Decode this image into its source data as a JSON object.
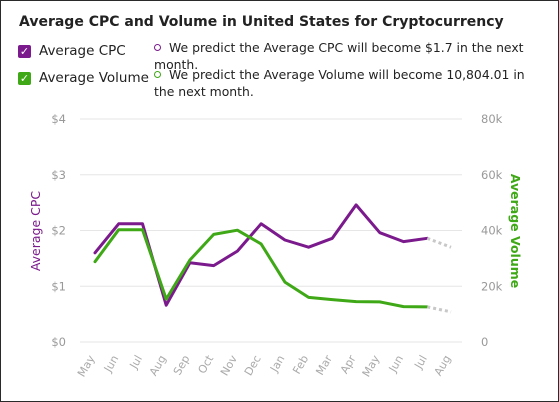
{
  "colors": {
    "cpc": "#7b1a8c",
    "volume": "#3fa816",
    "forecast": "#c8c8c8",
    "grid": "#e6e6e6",
    "axis_text": "#999999"
  },
  "legend": [
    {
      "label": "Average CPC",
      "color": "#7b1a8c",
      "icon": "check-icon"
    },
    {
      "label": "Average Volume",
      "color": "#3fa816",
      "icon": "check-icon"
    }
  ],
  "predictions": {
    "cpc": "We predict the Average CPC will become $1.7 in the next month.",
    "volume": "We predict the Average Volume will become 10,804.01 in the next month."
  },
  "chart_data": {
    "type": "line",
    "title": "Average CPC and Volume in United States for Cryptocurrency",
    "categories": [
      "May",
      "Jun",
      "Jul",
      "Aug",
      "Sep",
      "Oct",
      "Nov",
      "Dec",
      "Jan",
      "Feb",
      "Mar",
      "Apr",
      "May",
      "Jun",
      "Jul",
      "Aug"
    ],
    "series": [
      {
        "name": "Average CPC",
        "axis": "left",
        "values": [
          1.6,
          2.12,
          2.12,
          0.66,
          1.42,
          1.37,
          1.63,
          2.12,
          1.83,
          1.7,
          1.86,
          2.46,
          1.96,
          1.8,
          1.86,
          null
        ],
        "forecast": {
          "from_index": 14,
          "to_index": 15,
          "value": 1.7
        }
      },
      {
        "name": "Average Volume",
        "axis": "right",
        "values": [
          28800,
          40300,
          40300,
          15400,
          29400,
          38600,
          40100,
          35200,
          21500,
          16000,
          15200,
          14500,
          14400,
          12700,
          12600,
          null
        ],
        "forecast": {
          "from_index": 14,
          "to_index": 15,
          "value": 10804.01
        }
      }
    ],
    "y_left": {
      "label": "Average CPC",
      "min": 0,
      "max": 4,
      "ticks": [
        "$0",
        "$1",
        "$2",
        "$3",
        "$4"
      ]
    },
    "y_right": {
      "label": "Average Volume",
      "min": 0,
      "max": 80000,
      "ticks": [
        "0",
        "20k",
        "40k",
        "60k",
        "80k"
      ]
    },
    "grid": true
  }
}
